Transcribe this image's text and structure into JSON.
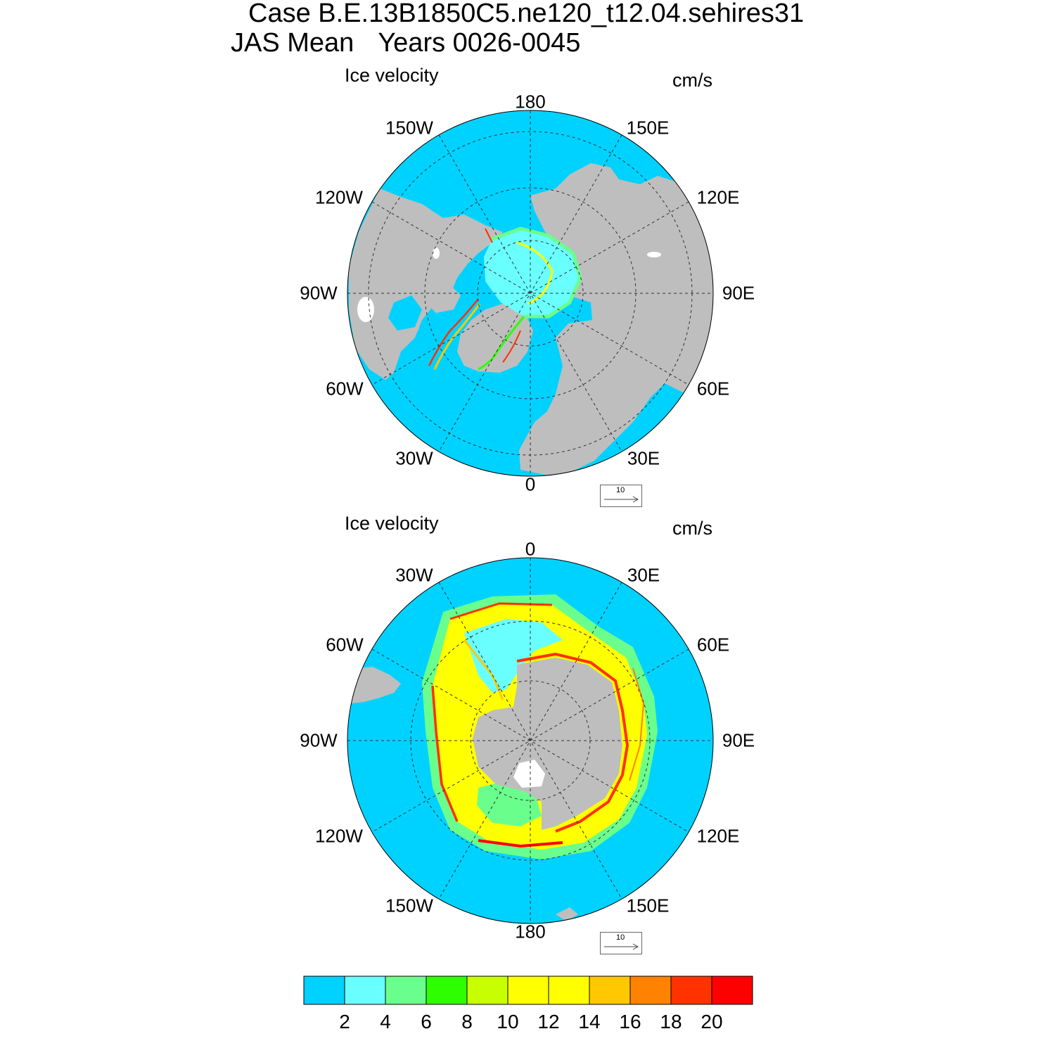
{
  "title": {
    "case_line": "Case B.E.13B1850C5.ne120_t12.04.sehires31",
    "season": "JAS Mean",
    "years": "Years 0026-0045"
  },
  "panels": [
    {
      "hemisphere": "north",
      "left_title": "Ice velocity",
      "units": "cm/s",
      "lon_labels": [
        "180",
        "150E",
        "120E",
        "90E",
        "60E",
        "30E",
        "0",
        "30W",
        "60W",
        "90W",
        "120W",
        "150W"
      ],
      "reference_vector": "10"
    },
    {
      "hemisphere": "south",
      "left_title": "Ice velocity",
      "units": "cm/s",
      "lon_labels": [
        "0",
        "30E",
        "60E",
        "90E",
        "120E",
        "150E",
        "180",
        "150W",
        "120W",
        "90W",
        "60W",
        "30W"
      ],
      "reference_vector": "10"
    }
  ],
  "colorbar": {
    "labels": [
      "2",
      "4",
      "6",
      "8",
      "10",
      "12",
      "14",
      "16",
      "18",
      "20"
    ],
    "colors": [
      "#00d2ff",
      "#6affff",
      "#6aff8c",
      "#2eff00",
      "#c8ff00",
      "#ffff00",
      "#ffff00",
      "#ffc800",
      "#ff8200",
      "#ff3200",
      "#ff0000"
    ]
  },
  "colors": {
    "ocean": "#00d2ff",
    "land": "#bebebe",
    "ice_fast": "#ff3200",
    "ice_mid": "#ffff00",
    "ice_slow": "#6aff8c"
  }
}
